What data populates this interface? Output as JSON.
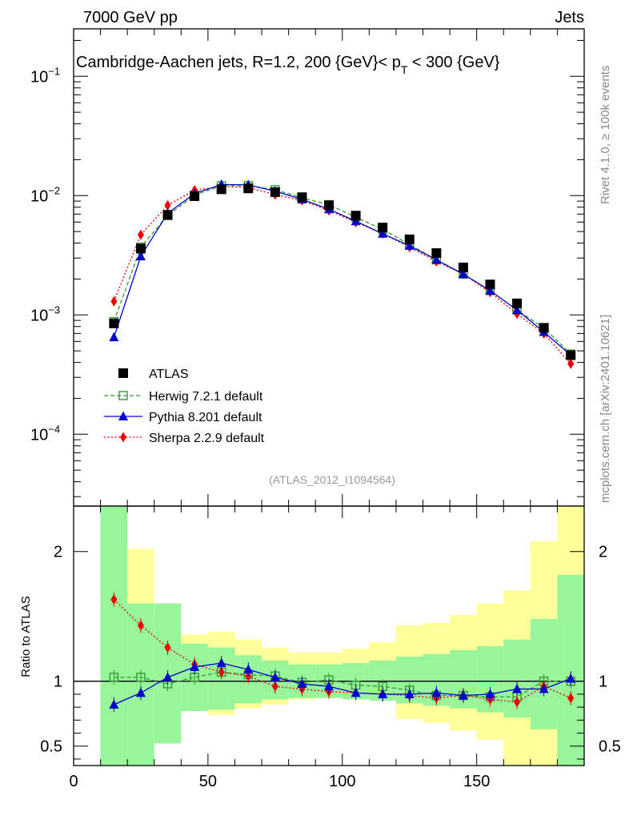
{
  "header": {
    "left": "7000 GeV pp",
    "right": "Jets"
  },
  "title": {
    "prefix": "Cambridge-Aachen jets, R=1.2,  200 {GeV}< p",
    "sub": "T",
    "suffix": " < 300 {GeV}"
  },
  "side_label_rivet": "Rivet 4.1.0, ≥ 100k events",
  "side_label_mcplots": "mcplots.cern.ch [arXiv:2401.10621]",
  "analysis_id": "(ATLAS_2012_I1094564)",
  "ratio_ylabel": "Ratio to ATLAS",
  "colors": {
    "atlas": "#000000",
    "herwig": "#339933",
    "pythia": "#0000cc",
    "sherpa": "#ee0000",
    "band_inner": "#99f599",
    "band_outer": "#ffff99"
  },
  "chart_data": [
    {
      "type": "scatter",
      "name": "main",
      "yscale": "log",
      "xlim": [
        0,
        190
      ],
      "ylim": [
        2.5e-05,
        0.25
      ],
      "y_ticks_labels": [
        {
          "value": 0.1,
          "base": "10",
          "exp": "−1"
        },
        {
          "value": 0.01,
          "base": "10",
          "exp": "−2"
        },
        {
          "value": 0.001,
          "base": "10",
          "exp": "−3"
        },
        {
          "value": 0.0001,
          "base": "10",
          "exp": "−4"
        }
      ],
      "x": [
        15,
        25,
        35,
        45,
        55,
        65,
        75,
        85,
        95,
        105,
        115,
        125,
        135,
        145,
        155,
        165,
        175,
        185
      ],
      "series": [
        {
          "name": "ATLAS",
          "key": "atlas",
          "marker": "square",
          "values": [
            0.00085,
            0.0036,
            0.0069,
            0.0099,
            0.0113,
            0.0115,
            0.0107,
            0.0097,
            0.0083,
            0.0068,
            0.0054,
            0.0043,
            0.0033,
            0.0025,
            0.0018,
            0.00125,
            0.00078,
            0.00046
          ]
        },
        {
          "name": "Herwig 7.2.1 default",
          "key": "herwig",
          "marker": "open-square",
          "line": "dashed",
          "values": [
            0.00088,
            0.0037,
            0.0068,
            0.0101,
            0.0121,
            0.0121,
            0.0112,
            0.0096,
            0.0084,
            0.0066,
            0.0052,
            0.0039,
            0.0029,
            0.0022,
            0.0016,
            0.0011,
            0.00078,
            0.00047
          ]
        },
        {
          "name": "Pythia 8.201 default",
          "key": "pythia",
          "marker": "triangle",
          "line": "solid",
          "values": [
            0.00065,
            0.0031,
            0.0071,
            0.0104,
            0.0124,
            0.0123,
            0.0109,
            0.0093,
            0.0077,
            0.0061,
            0.0048,
            0.0038,
            0.0029,
            0.0022,
            0.0016,
            0.0011,
            0.00072,
            0.00046
          ]
        },
        {
          "name": "Sherpa 2.2.9 default",
          "key": "sherpa",
          "marker": "diamond",
          "line": "dotted",
          "values": [
            0.0013,
            0.0047,
            0.0083,
            0.0111,
            0.0119,
            0.0117,
            0.0102,
            0.0091,
            0.0075,
            0.006,
            0.0048,
            0.0037,
            0.0028,
            0.0022,
            0.00155,
            0.00102,
            0.0007,
            0.00039
          ]
        }
      ]
    },
    {
      "type": "scatter",
      "name": "ratio",
      "xlim": [
        0,
        190
      ],
      "ylim": [
        0.35,
        2.35
      ],
      "xlabel": "",
      "ylabel": "Ratio to ATLAS",
      "x_ticks": [
        0,
        50,
        100,
        150
      ],
      "y_ticks": [
        0.5,
        1,
        2
      ],
      "y_tick_labels": [
        "0.5",
        "1",
        "2"
      ],
      "x": [
        15,
        25,
        35,
        45,
        55,
        65,
        75,
        85,
        95,
        105,
        115,
        125,
        135,
        145,
        155,
        165,
        175,
        185
      ],
      "bins": [
        [
          10,
          20
        ],
        [
          20,
          30
        ],
        [
          30,
          40
        ],
        [
          40,
          50
        ],
        [
          50,
          60
        ],
        [
          60,
          70
        ],
        [
          70,
          80
        ],
        [
          80,
          90
        ],
        [
          90,
          100
        ],
        [
          100,
          110
        ],
        [
          110,
          120
        ],
        [
          120,
          130
        ],
        [
          130,
          140
        ],
        [
          140,
          150
        ],
        [
          150,
          160
        ],
        [
          160,
          170
        ],
        [
          170,
          180
        ],
        [
          180,
          190
        ]
      ],
      "band_inner": [
        [
          0.35,
          2.35
        ],
        [
          0.35,
          1.6
        ],
        [
          0.52,
          1.6
        ],
        [
          0.77,
          1.29
        ],
        [
          0.78,
          1.26
        ],
        [
          0.83,
          1.2
        ],
        [
          0.86,
          1.16
        ],
        [
          0.87,
          1.13
        ],
        [
          0.87,
          1.13
        ],
        [
          0.86,
          1.14
        ],
        [
          0.85,
          1.16
        ],
        [
          0.83,
          1.19
        ],
        [
          0.81,
          1.21
        ],
        [
          0.79,
          1.24
        ],
        [
          0.76,
          1.27
        ],
        [
          0.72,
          1.32
        ],
        [
          0.63,
          1.48
        ],
        [
          0.35,
          1.82
        ]
      ],
      "band_outer": [
        [
          0.35,
          2.35
        ],
        [
          0.35,
          2.02
        ],
        [
          0.52,
          1.58
        ],
        [
          0.77,
          1.36
        ],
        [
          0.74,
          1.38
        ],
        [
          0.79,
          1.32
        ],
        [
          0.82,
          1.26
        ],
        [
          0.86,
          1.22
        ],
        [
          0.87,
          1.22
        ],
        [
          0.86,
          1.25
        ],
        [
          0.85,
          1.3
        ],
        [
          0.71,
          1.43
        ],
        [
          0.68,
          1.45
        ],
        [
          0.62,
          1.51
        ],
        [
          0.55,
          1.6
        ],
        [
          0.35,
          1.7
        ],
        [
          0.35,
          2.08
        ],
        [
          0.35,
          2.35
        ]
      ],
      "series": [
        {
          "name": "Herwig 7.2.1 default",
          "key": "herwig",
          "marker": "open-square",
          "line": "dashed",
          "values": [
            1.03,
            1.03,
            0.98,
            1.03,
            1.07,
            1.05,
            1.04,
            0.99,
            1.01,
            0.97,
            0.96,
            0.93,
            0.89,
            0.89,
            0.88,
            0.88,
            1.0,
            1.0
          ]
        },
        {
          "name": "Pythia 8.201 default",
          "key": "pythia",
          "marker": "triangle",
          "line": "solid",
          "values": [
            0.82,
            0.91,
            1.03,
            1.11,
            1.14,
            1.09,
            1.03,
            0.98,
            0.96,
            0.91,
            0.9,
            0.9,
            0.91,
            0.89,
            0.9,
            0.94,
            0.94,
            1.02
          ]
        },
        {
          "name": "Sherpa 2.2.9 default",
          "key": "sherpa",
          "marker": "diamond",
          "line": "dotted",
          "values": [
            1.63,
            1.43,
            1.26,
            1.13,
            1.07,
            1.04,
            0.96,
            0.94,
            0.92,
            0.91,
            0.9,
            0.89,
            0.87,
            0.89,
            0.86,
            0.84,
            0.96,
            0.87
          ]
        }
      ]
    }
  ]
}
